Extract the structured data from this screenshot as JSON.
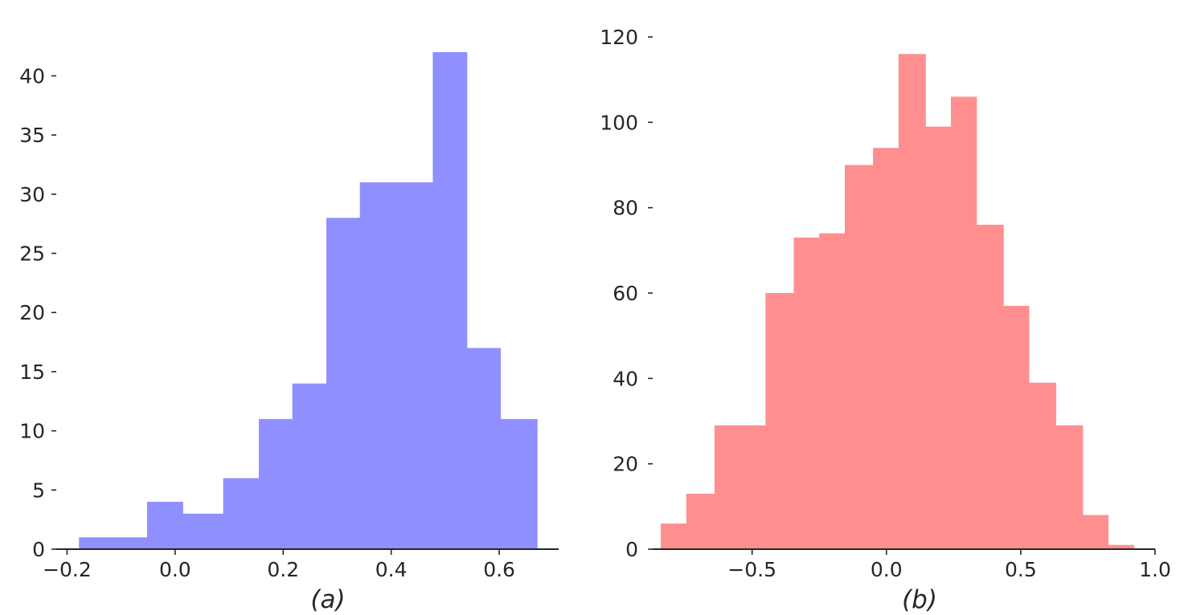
{
  "chart_data": [
    {
      "type": "bar",
      "caption": "(a)",
      "color": "#8f8fff",
      "bins": [
        {
          "x0": -0.178,
          "x1": -0.115,
          "count": 1
        },
        {
          "x0": -0.115,
          "x1": -0.052,
          "count": 1
        },
        {
          "x0": -0.052,
          "x1": 0.014,
          "count": 4
        },
        {
          "x0": 0.014,
          "x1": 0.089,
          "count": 3
        },
        {
          "x0": 0.089,
          "x1": 0.155,
          "count": 6
        },
        {
          "x0": 0.155,
          "x1": 0.217,
          "count": 11
        },
        {
          "x0": 0.217,
          "x1": 0.28,
          "count": 14
        },
        {
          "x0": 0.28,
          "x1": 0.342,
          "count": 28
        },
        {
          "x0": 0.342,
          "x1": 0.405,
          "count": 31
        },
        {
          "x0": 0.405,
          "x1": 0.477,
          "count": 31
        },
        {
          "x0": 0.477,
          "x1": 0.54,
          "count": 42
        },
        {
          "x0": 0.54,
          "x1": 0.602,
          "count": 17
        },
        {
          "x0": 0.602,
          "x1": 0.67,
          "count": 11
        }
      ],
      "xlim": [
        -0.22,
        0.71
      ],
      "ylim": [
        0,
        42
      ],
      "xticks": [
        -0.2,
        0.0,
        0.2,
        0.4,
        0.6
      ],
      "xtick_labels": [
        "−0.2",
        "0.0",
        "0.2",
        "0.4",
        "0.6"
      ],
      "yticks": [
        0,
        5,
        10,
        15,
        20,
        25,
        30,
        35,
        40
      ],
      "ytick_labels": [
        "0",
        "5",
        "10",
        "15",
        "20",
        "25",
        "30",
        "35",
        "40"
      ],
      "grid": false
    },
    {
      "type": "bar",
      "caption": "(b)",
      "color": "#ff8f8f",
      "bins": [
        {
          "x0": -0.84,
          "x1": -0.745,
          "count": 6
        },
        {
          "x0": -0.745,
          "x1": -0.64,
          "count": 13
        },
        {
          "x0": -0.64,
          "x1": -0.45,
          "count": 29
        },
        {
          "x0": -0.45,
          "x1": -0.345,
          "count": 60
        },
        {
          "x0": -0.345,
          "x1": -0.25,
          "count": 73
        },
        {
          "x0": -0.25,
          "x1": -0.155,
          "count": 74
        },
        {
          "x0": -0.155,
          "x1": -0.05,
          "count": 90
        },
        {
          "x0": -0.05,
          "x1": 0.045,
          "count": 94
        },
        {
          "x0": 0.045,
          "x1": 0.145,
          "count": 116
        },
        {
          "x0": 0.145,
          "x1": 0.24,
          "count": 99
        },
        {
          "x0": 0.24,
          "x1": 0.335,
          "count": 106
        },
        {
          "x0": 0.335,
          "x1": 0.435,
          "count": 76
        },
        {
          "x0": 0.435,
          "x1": 0.53,
          "count": 57
        },
        {
          "x0": 0.53,
          "x1": 0.63,
          "count": 39
        },
        {
          "x0": 0.63,
          "x1": 0.73,
          "count": 29
        },
        {
          "x0": 0.73,
          "x1": 0.825,
          "count": 8
        },
        {
          "x0": 0.825,
          "x1": 0.92,
          "count": 1
        }
      ],
      "xlim": [
        -0.87,
        1.0
      ],
      "ylim": [
        0,
        120
      ],
      "xticks": [
        -0.5,
        0.0,
        0.5,
        1.0
      ],
      "xtick_labels": [
        "−0.5",
        "0.0",
        "0.5",
        "1.0"
      ],
      "yticks": [
        0,
        20,
        40,
        60,
        80,
        100,
        120
      ],
      "ytick_labels": [
        "0",
        "20",
        "40",
        "60",
        "80",
        "100",
        "120"
      ],
      "grid": false
    }
  ]
}
